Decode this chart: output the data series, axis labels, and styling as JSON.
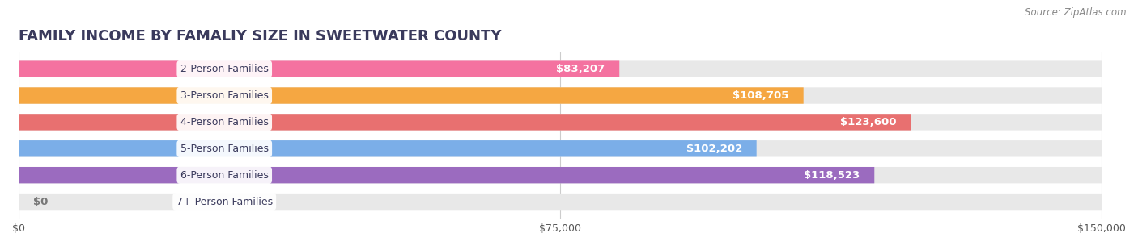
{
  "title": "FAMILY INCOME BY FAMALIY SIZE IN SWEETWATER COUNTY",
  "source": "Source: ZipAtlas.com",
  "categories": [
    "2-Person Families",
    "3-Person Families",
    "4-Person Families",
    "5-Person Families",
    "6-Person Families",
    "7+ Person Families"
  ],
  "values": [
    83207,
    108705,
    123600,
    102202,
    118523,
    0
  ],
  "labels": [
    "$83,207",
    "$108,705",
    "$123,600",
    "$102,202",
    "$118,523",
    "$0"
  ],
  "colors": [
    "#f472a0",
    "#f5a742",
    "#e87070",
    "#7baee8",
    "#9b6bbf",
    "#5ec8c8"
  ],
  "bar_bg_color": "#f0f0f0",
  "background_color": "#ffffff",
  "xlim": [
    0,
    150000
  ],
  "xticks": [
    0,
    75000,
    150000
  ],
  "xticklabels": [
    "$0",
    "$75,000",
    "$150,000"
  ],
  "title_color": "#3a3a5c",
  "title_fontsize": 13,
  "bar_height": 0.62,
  "label_color_inside": "#ffffff",
  "label_color_outside": "#555555"
}
